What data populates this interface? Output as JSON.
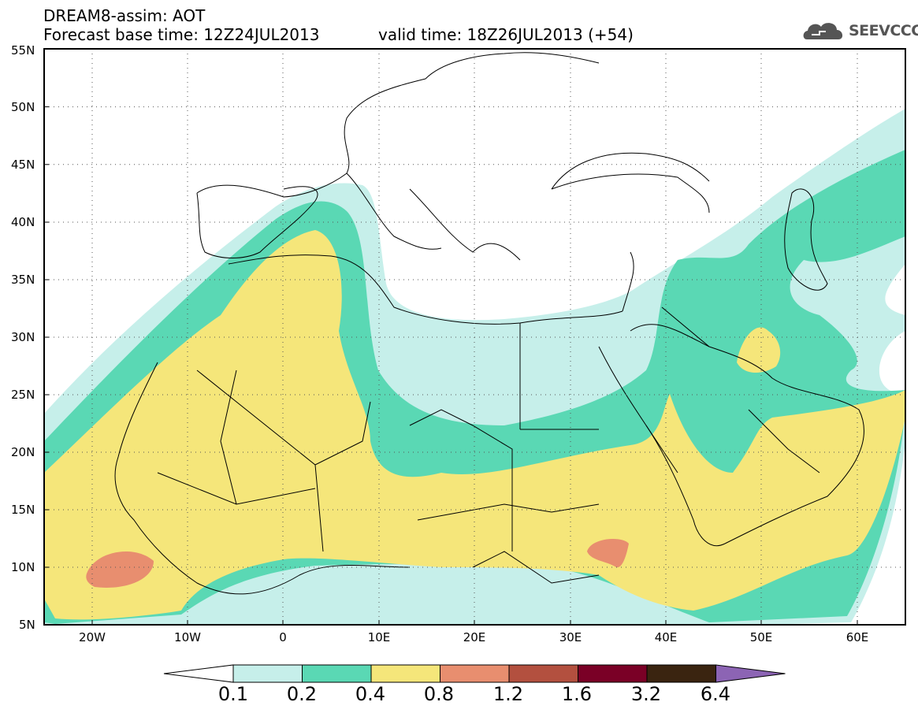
{
  "header": {
    "title": "DREAM8-assim: AOT",
    "base_time": "Forecast base time: 12Z24JUL2013",
    "valid_time": "valid time: 18Z26JUL2013 (+54)"
  },
  "logo": {
    "text": "SEEVCCC",
    "icon": "cloud-icon"
  },
  "map": {
    "lat_labels": [
      "55N",
      "50N",
      "45N",
      "40N",
      "35N",
      "30N",
      "25N",
      "20N",
      "15N",
      "10N",
      "5N"
    ],
    "lon_labels": [
      "20W",
      "10W",
      "0",
      "10E",
      "20E",
      "30E",
      "40E",
      "50E",
      "60E"
    ],
    "lon_range": [
      -25,
      65
    ],
    "lat_range": [
      5,
      55
    ],
    "grid": "dotted"
  },
  "colorbar": {
    "labels": [
      "0.1",
      "0.2",
      "0.4",
      "0.8",
      "1.2",
      "1.6",
      "3.2",
      "6.4"
    ],
    "colors": [
      "#ffffff",
      "#c6efea",
      "#5ad8b4",
      "#f5e67a",
      "#e88e6f",
      "#b3503f",
      "#7a0026",
      "#3a2410",
      "#8c64b4"
    ]
  }
}
